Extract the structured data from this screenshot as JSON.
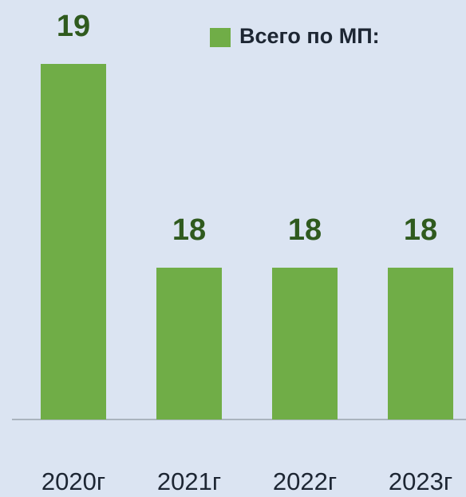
{
  "chart_data": {
    "type": "bar",
    "categories": [
      "2020г",
      "2021г",
      "2022г",
      "2023г"
    ],
    "values": [
      19,
      18,
      18,
      18
    ],
    "color": "#70ad47",
    "ylim": [
      17.255,
      19
    ],
    "legend": {
      "name": "Всего по МП:",
      "position": "top-right"
    }
  }
}
